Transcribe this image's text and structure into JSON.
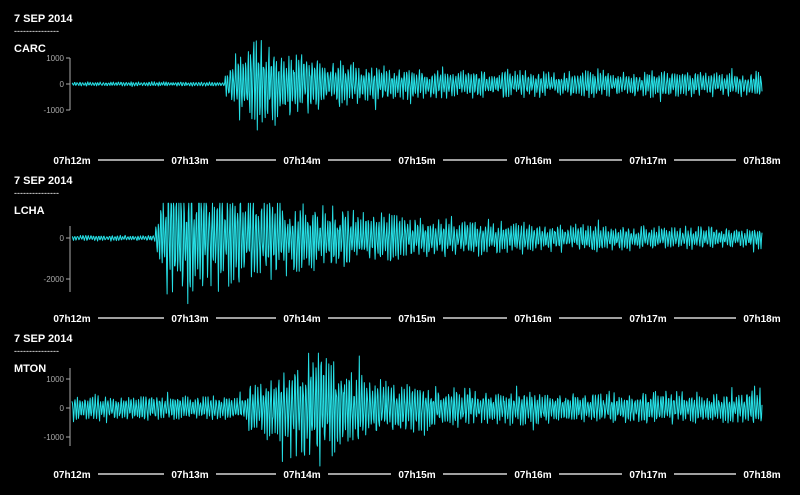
{
  "theme": {
    "background": "#000000",
    "trace_color": "#26e0e6",
    "text_color": "#ffffff",
    "axis_color": "#aaaaaa"
  },
  "chart_data": [
    {
      "type": "line",
      "date": "7  SEP 2014",
      "separator": "---------------",
      "station": "CARC",
      "time_ticks": [
        "07h12m",
        "07h13m",
        "07h14m",
        "07h15m",
        "07h16m",
        "07h17m",
        "07h18m"
      ],
      "y_ticks": [
        1000,
        0,
        -1000
      ],
      "y_tick_labels": [
        "1000",
        "0",
        "-1000"
      ],
      "ylim": [
        -2500,
        2000
      ],
      "xlim": [
        0,
        6
      ],
      "signal": {
        "onset_minutes": 1.33,
        "peak_minutes": 1.55,
        "noise": 60,
        "peak_amplitude": 1750,
        "coda_amplitude": 420,
        "decay": 0.55,
        "seed": 11
      }
    },
    {
      "type": "line",
      "date": "7 SEP 2014",
      "separator": "---------------",
      "station": "LCHA",
      "time_ticks": [
        "07h12m",
        "07h13m",
        "07h14m",
        "07h15m",
        "07h16m",
        "07h17m",
        "07h18m"
      ],
      "y_ticks": [
        0,
        -2000
      ],
      "y_tick_labels": [
        "0",
        "-2000"
      ],
      "ylim": [
        -3200,
        1700
      ],
      "xlim": [
        0,
        6
      ],
      "signal": {
        "onset_minutes": 0.72,
        "peak_minutes": 0.85,
        "noise": 90,
        "peak_amplitude": 2800,
        "coda_amplitude": 380,
        "decay": 1.4,
        "seed": 23
      }
    },
    {
      "type": "line",
      "date": "7  SEP 2014",
      "separator": "---------------",
      "station": "MTON",
      "time_ticks": [
        "07h12m",
        "07h13m",
        "07h14m",
        "07h15m",
        "07h16m",
        "07h17m",
        "07h18m"
      ],
      "y_ticks": [
        1000,
        0,
        -1000
      ],
      "y_tick_labels": [
        "1000",
        "0",
        "-1000"
      ],
      "ylim": [
        -2000,
        2100
      ],
      "xlim": [
        0,
        6
      ],
      "signal": {
        "onset_minutes": 1.45,
        "peak_minutes": 2.15,
        "noise": 300,
        "peak_amplitude": 1800,
        "coda_amplitude": 480,
        "decay": 0.45,
        "seed": 37
      }
    }
  ]
}
